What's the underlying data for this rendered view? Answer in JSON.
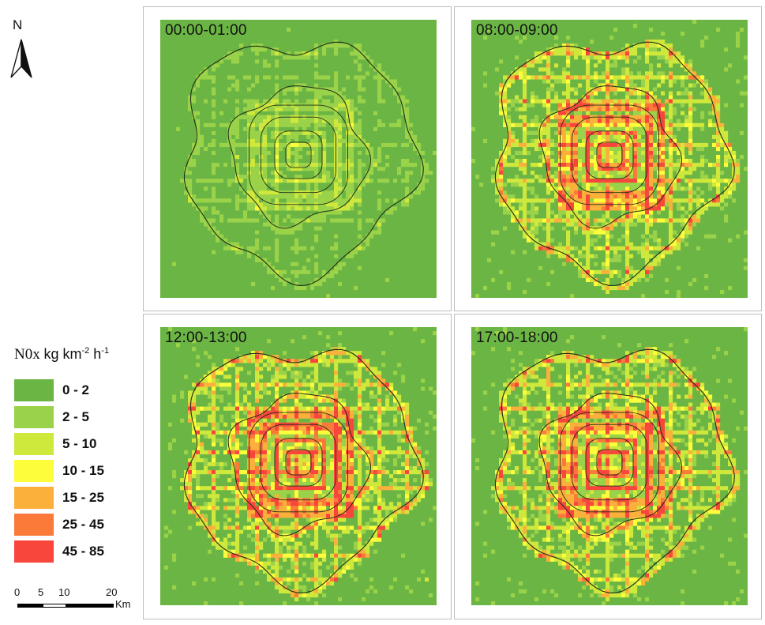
{
  "north_arrow": {
    "letter": "N"
  },
  "panels": [
    {
      "label": "00:00-01:00",
      "intensity": 0.15
    },
    {
      "label": "08:00-09:00",
      "intensity": 0.85
    },
    {
      "label": "12:00-13:00",
      "intensity": 0.92
    },
    {
      "label": "17:00-18:00",
      "intensity": 0.9
    }
  ],
  "legend": {
    "title_main": "N0x",
    "title_unit": "kg km",
    "title_exp1": "-2",
    "title_h": " h",
    "title_exp2": "-1",
    "classes": [
      {
        "label": "0 - 2",
        "color": "#6bb544"
      },
      {
        "label": "2 - 5",
        "color": "#9ad249"
      },
      {
        "label": "5 - 10",
        "color": "#cfe83c"
      },
      {
        "label": "10 - 15",
        "color": "#fdfd3b"
      },
      {
        "label": "15 - 25",
        "color": "#fbb03b"
      },
      {
        "label": "25 - 45",
        "color": "#fb7a3a"
      },
      {
        "label": "45 - 85",
        "color": "#f8463c"
      }
    ]
  },
  "scale_bar": {
    "ticks": [
      "0",
      "5",
      "10",
      "20"
    ],
    "unit": "Km"
  }
}
